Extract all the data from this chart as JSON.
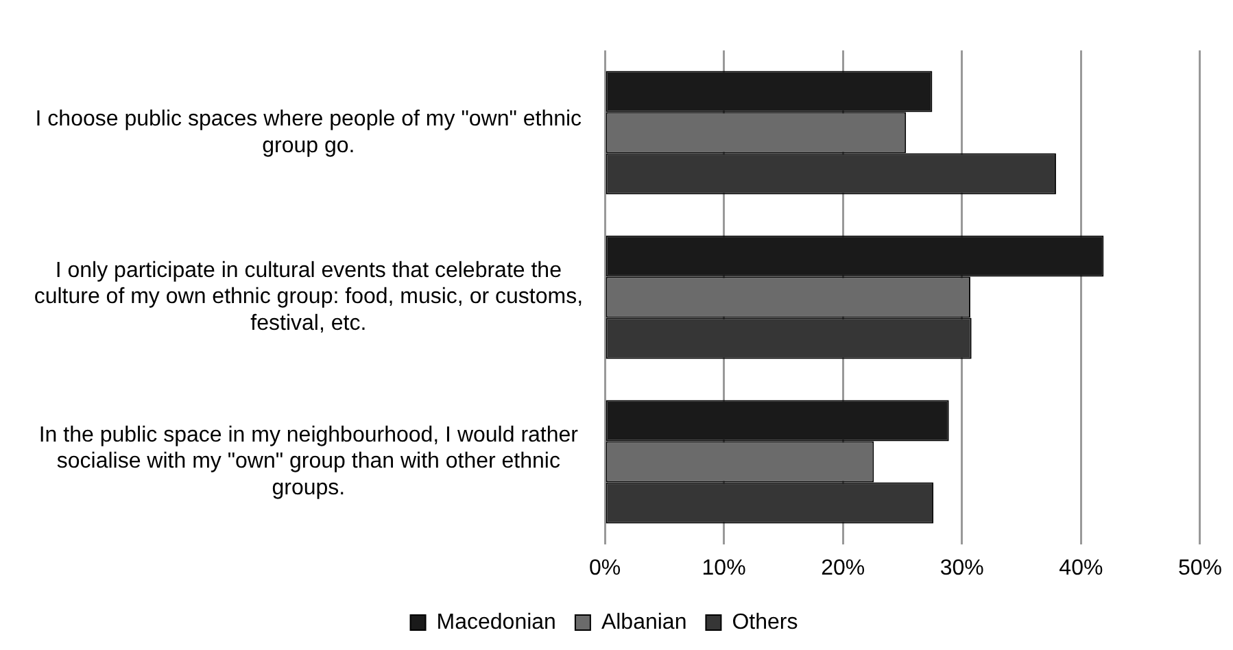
{
  "chart_data": {
    "type": "bar",
    "orientation": "horizontal",
    "categories": [
      "I choose public spaces where people of my \"own\" ethnic group go.",
      "I only participate in cultural events that celebrate the culture of my own ethnic group: food, music, or customs, festival, etc.",
      "In the public space in my neighbourhood, I would rather socialise with my \"own\" group than with other ethnic groups."
    ],
    "series": [
      {
        "name": "Macedonian",
        "color": "#1a1a1a",
        "values": [
          27.5,
          41.9,
          28.9
        ]
      },
      {
        "name": "Albanian",
        "color": "#6b6b6b",
        "values": [
          25.3,
          30.7,
          22.6
        ]
      },
      {
        "name": "Others",
        "color": "#363636",
        "values": [
          37.9,
          30.8,
          27.6
        ]
      }
    ],
    "xlim": [
      0,
      50
    ],
    "xticks": [
      {
        "value": 0,
        "label": "0%"
      },
      {
        "value": 10,
        "label": "10%"
      },
      {
        "value": 20,
        "label": "20%"
      },
      {
        "value": 30,
        "label": "30%"
      },
      {
        "value": 40,
        "label": "40%"
      },
      {
        "value": 50,
        "label": "50%"
      }
    ],
    "grid": "x",
    "legend": "bottom"
  }
}
